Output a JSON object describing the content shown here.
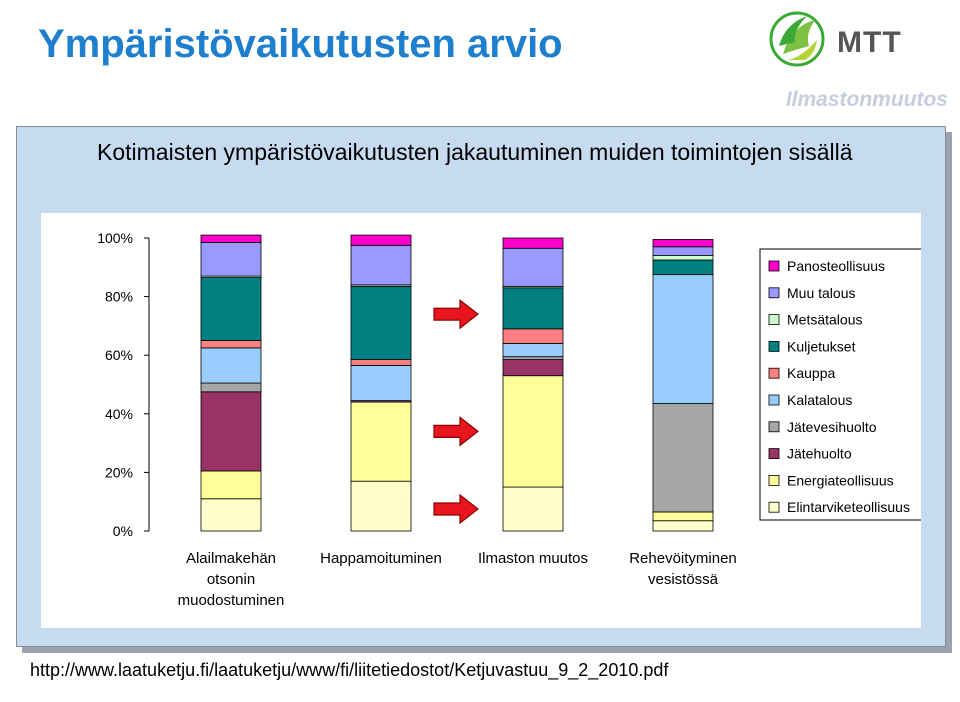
{
  "header": {
    "title": "Ympäristövaikutusten arvio",
    "subtitle": "Ilmastonmuutos",
    "logo_text": "MTT"
  },
  "footer": {
    "url": "http://www.laatuketju.fi/laatuketju/www/fi/liitetiedostot/Ketjuvastuu_9_2_2010.pdf"
  },
  "colors": {
    "title": "#1f7fcf",
    "panel_bg": "#c6dbef",
    "arrow": "#e8141e",
    "logo_green": "#3aa935",
    "logo_text": "#555555"
  },
  "chart_data": {
    "type": "bar",
    "stacked": true,
    "title": "Kotimaisten ympäristövaikutusten jakautuminen muiden toimintojen sisällä",
    "categories": [
      [
        "Alailmakehän",
        "otsonin",
        "muodostuminen"
      ],
      [
        "Happamoituminen"
      ],
      [
        "Ilmaston muutos"
      ],
      [
        "Rehevöityminen",
        "vesistössä"
      ]
    ],
    "yticks": [
      "0%",
      "20%",
      "40%",
      "60%",
      "80%",
      "100%"
    ],
    "ylim": [
      0,
      100
    ],
    "grid": false,
    "legend_position": "right",
    "series": [
      {
        "name": "Elintarviketeollisuus",
        "color": "#ffffcc",
        "values": [
          11,
          17,
          15,
          3.5
        ]
      },
      {
        "name": "Energiateollisuus",
        "color": "#ffff99",
        "values": [
          9.5,
          27,
          38,
          3
        ]
      },
      {
        "name": "Jätehuolto",
        "color": "#993366",
        "values": [
          27,
          0.5,
          5.5,
          0
        ]
      },
      {
        "name": "Jätevesihuolto",
        "color": "#a6a6a6",
        "values": [
          3,
          0,
          1,
          37
        ]
      },
      {
        "name": "Kalatalous",
        "color": "#99ccff",
        "values": [
          12,
          12,
          4.5,
          44
        ]
      },
      {
        "name": "Kauppa",
        "color": "#ff8080",
        "values": [
          2.5,
          2,
          5,
          0
        ]
      },
      {
        "name": "Kuljetukset",
        "color": "#008080",
        "values": [
          21.5,
          25,
          14,
          5
        ]
      },
      {
        "name": "Metsätalous",
        "color": "#ccffcc",
        "values": [
          0.5,
          0.5,
          0.5,
          1.5
        ]
      },
      {
        "name": "Muu talous",
        "color": "#9999ff",
        "values": [
          11.5,
          13.5,
          13,
          3
        ]
      },
      {
        "name": "Panosteollisuus",
        "color": "#ff00cc",
        "values": [
          2.5,
          3.5,
          3.5,
          2.5
        ]
      }
    ],
    "annotations": [
      {
        "type": "arrow",
        "color": "#e8141e",
        "direction": "right",
        "y_value": 74
      },
      {
        "type": "arrow",
        "color": "#e8141e",
        "direction": "right",
        "y_value": 34
      },
      {
        "type": "arrow",
        "color": "#e8141e",
        "direction": "right",
        "y_value": 7.5
      }
    ]
  }
}
